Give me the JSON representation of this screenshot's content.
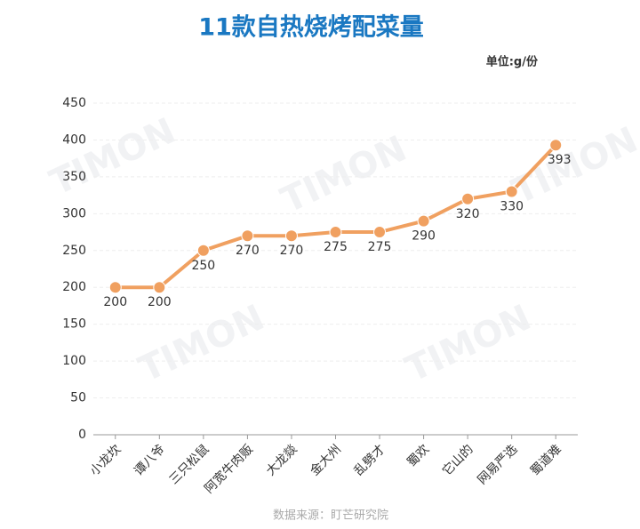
{
  "chart_data": {
    "type": "line",
    "title": "11款自热烧烤配菜量",
    "unit": "单位:g/份",
    "source": "数据来源：盯芒研究院",
    "watermark": "TIMON",
    "categories": [
      "小龙坎",
      "谭八爷",
      "三只松鼠",
      "阿宽牛肉贩",
      "大龙燚",
      "金大州",
      "乱劈才",
      "蜀欢",
      "它山的",
      "网易严选",
      "蜀道难"
    ],
    "series": [
      {
        "name": "配菜量",
        "color": "#f0a060",
        "values": [
          200,
          200,
          250,
          270,
          270,
          275,
          275,
          290,
          320,
          330,
          393
        ]
      }
    ],
    "ylim": [
      0,
      450
    ],
    "yticks": [
      0,
      50,
      100,
      150,
      200,
      250,
      300,
      350,
      400,
      450
    ],
    "grid": true
  }
}
